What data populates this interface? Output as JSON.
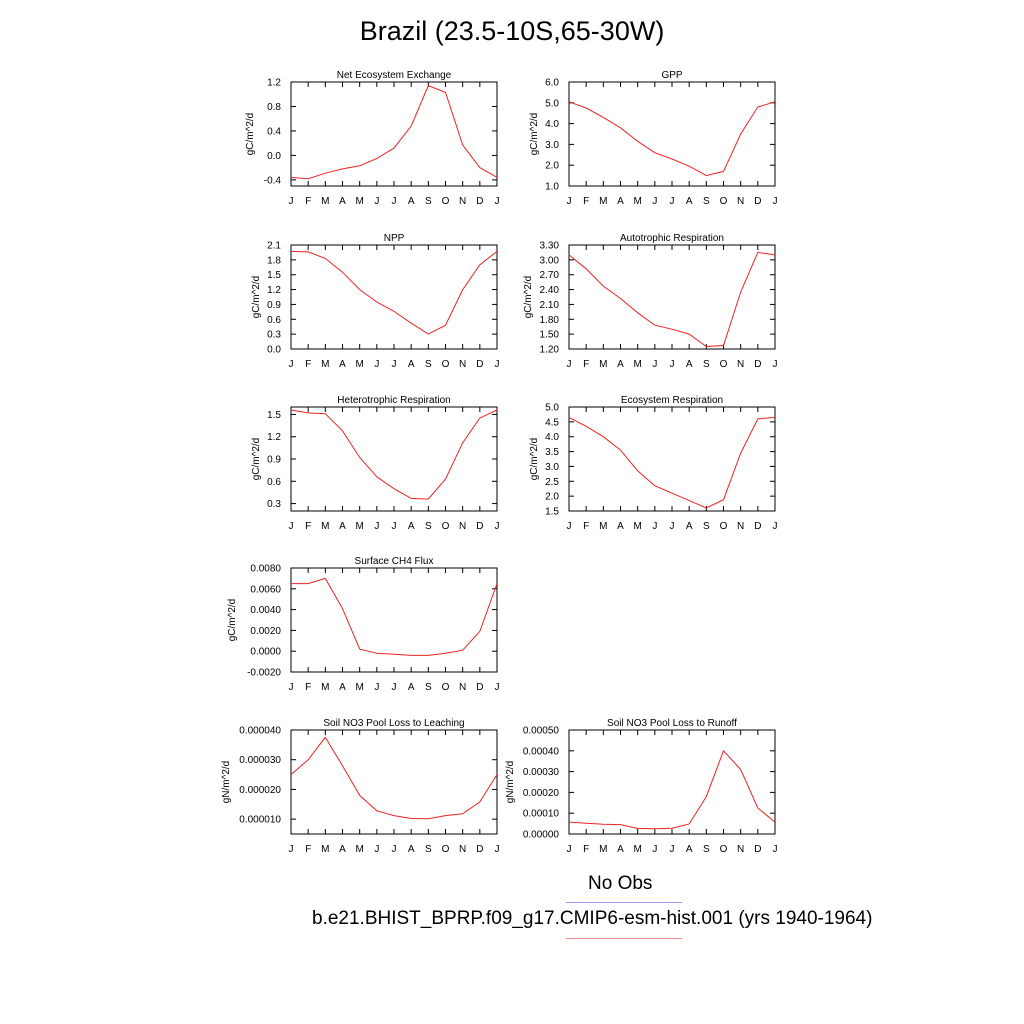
{
  "title": "Brazil (23.5-10S,65-30W)",
  "legend": {
    "obs_label": "No Obs",
    "model_label": "b.e21.BHIST_BPRP.f09_g17.CMIP6-esm-hist.001 (yrs 1940-1964)",
    "obs_color": "#9999ee",
    "model_color": "#ee2222"
  },
  "chart_data": [
    {
      "type": "line",
      "title": "Net Ecosystem Exchange",
      "ylabel": "gC/m^2/d",
      "x": [
        "J",
        "F",
        "M",
        "A",
        "M",
        "J",
        "J",
        "A",
        "S",
        "O",
        "N",
        "D",
        "J"
      ],
      "ylim": [
        -0.5,
        1.2
      ],
      "yticks": [
        "1.2",
        "0.8",
        "0.4",
        "0.0",
        "-0.4"
      ],
      "ytick_values": [
        1.2,
        0.8,
        0.4,
        0.0,
        -0.4
      ],
      "series": [
        {
          "values": [
            -0.36,
            -0.38,
            -0.29,
            -0.22,
            -0.17,
            -0.05,
            0.12,
            0.48,
            1.14,
            1.03,
            0.17,
            -0.2,
            -0.36
          ]
        }
      ]
    },
    {
      "type": "line",
      "title": "GPP",
      "ylabel": "gC/m^2/d",
      "x": [
        "J",
        "F",
        "M",
        "A",
        "M",
        "J",
        "J",
        "A",
        "S",
        "O",
        "N",
        "D",
        "J"
      ],
      "ylim": [
        1.0,
        6.0
      ],
      "yticks": [
        "6.0",
        "5.0",
        "4.0",
        "3.0",
        "2.0",
        "1.0"
      ],
      "ytick_values": [
        6,
        5,
        4,
        3,
        2,
        1
      ],
      "series": [
        {
          "values": [
            5.05,
            4.75,
            4.3,
            3.8,
            3.15,
            2.6,
            2.3,
            1.95,
            1.5,
            1.7,
            3.5,
            4.8,
            5.05
          ]
        }
      ]
    },
    {
      "type": "line",
      "title": "NPP",
      "ylabel": "gC/m^2/d",
      "x": [
        "J",
        "F",
        "M",
        "A",
        "M",
        "J",
        "J",
        "A",
        "S",
        "O",
        "N",
        "D",
        "J"
      ],
      "ylim": [
        0.0,
        2.1
      ],
      "yticks": [
        "2.1",
        "1.8",
        "1.5",
        "1.2",
        "0.9",
        "0.6",
        "0.3",
        "0.0"
      ],
      "ytick_values": [
        2.1,
        1.8,
        1.5,
        1.2,
        0.9,
        0.6,
        0.3,
        0.0
      ],
      "series": [
        {
          "values": [
            1.97,
            1.96,
            1.83,
            1.55,
            1.2,
            0.95,
            0.76,
            0.52,
            0.3,
            0.48,
            1.2,
            1.7,
            1.97
          ]
        }
      ]
    },
    {
      "type": "line",
      "title": "Autotrophic Respiration",
      "ylabel": "gC/m^2/d",
      "x": [
        "J",
        "F",
        "M",
        "A",
        "M",
        "J",
        "J",
        "A",
        "S",
        "O",
        "N",
        "D",
        "J"
      ],
      "ylim": [
        1.2,
        3.3
      ],
      "yticks": [
        "3.30",
        "3.00",
        "2.70",
        "2.40",
        "2.10",
        "1.80",
        "1.50",
        "1.20"
      ],
      "ytick_values": [
        3.3,
        3.0,
        2.7,
        2.4,
        2.1,
        1.8,
        1.5,
        1.2
      ],
      "series": [
        {
          "values": [
            3.1,
            2.82,
            2.47,
            2.22,
            1.93,
            1.68,
            1.6,
            1.5,
            1.25,
            1.27,
            2.35,
            3.15,
            3.1
          ]
        }
      ]
    },
    {
      "type": "line",
      "title": "Heterotrophic Respiration",
      "ylabel": "gC/m^2/d",
      "x": [
        "J",
        "F",
        "M",
        "A",
        "M",
        "J",
        "J",
        "A",
        "S",
        "O",
        "N",
        "D",
        "J"
      ],
      "ylim": [
        0.2,
        1.6
      ],
      "yticks": [
        "1.5",
        "1.2",
        "0.9",
        "0.6",
        "0.3"
      ],
      "ytick_values": [
        1.5,
        1.2,
        0.9,
        0.6,
        0.3
      ],
      "series": [
        {
          "values": [
            1.56,
            1.52,
            1.51,
            1.28,
            0.92,
            0.66,
            0.5,
            0.37,
            0.36,
            0.63,
            1.12,
            1.45,
            1.56
          ]
        }
      ]
    },
    {
      "type": "line",
      "title": "Ecosystem Respiration",
      "ylabel": "gC/m^2/d",
      "x": [
        "J",
        "F",
        "M",
        "A",
        "M",
        "J",
        "J",
        "A",
        "S",
        "O",
        "N",
        "D",
        "J"
      ],
      "ylim": [
        1.5,
        5.0
      ],
      "yticks": [
        "5.0",
        "4.5",
        "4.0",
        "3.5",
        "3.0",
        "2.5",
        "2.0",
        "1.5"
      ],
      "ytick_values": [
        5.0,
        4.5,
        4.0,
        3.5,
        3.0,
        2.5,
        2.0,
        1.5
      ],
      "series": [
        {
          "values": [
            4.65,
            4.35,
            4.0,
            3.55,
            2.85,
            2.35,
            2.1,
            1.85,
            1.6,
            1.88,
            3.45,
            4.6,
            4.65
          ]
        }
      ]
    },
    {
      "type": "line",
      "title": "Surface CH4 Flux",
      "ylabel": "gC/m^2/d",
      "x": [
        "J",
        "F",
        "M",
        "A",
        "M",
        "J",
        "J",
        "A",
        "S",
        "O",
        "N",
        "D",
        "J"
      ],
      "ylim": [
        -0.002,
        0.008
      ],
      "yticks": [
        "0.0080",
        "0.0060",
        "0.0040",
        "0.0020",
        "0.0000",
        "-0.0020"
      ],
      "ytick_values": [
        0.008,
        0.006,
        0.004,
        0.002,
        0.0,
        -0.002
      ],
      "series": [
        {
          "values": [
            0.0065,
            0.0065,
            0.007,
            0.0041,
            0.0002,
            -0.0002,
            -0.0003,
            -0.0004,
            -0.0004,
            -0.0002,
            0.0001,
            0.0019,
            0.0065
          ]
        }
      ]
    },
    {
      "type": "line",
      "title": "Soil NO3 Pool Loss to Leaching",
      "ylabel": "gN/m^2/d",
      "x": [
        "J",
        "F",
        "M",
        "A",
        "M",
        "J",
        "J",
        "A",
        "S",
        "O",
        "N",
        "D",
        "J"
      ],
      "ylim": [
        5e-06,
        4e-05
      ],
      "yticks": [
        "0.000040",
        "0.000030",
        "0.000020",
        "0.000010"
      ],
      "ytick_values": [
        4e-05,
        3e-05,
        2e-05,
        1e-05
      ],
      "series": [
        {
          "values": [
            2.5e-05,
            3e-05,
            3.75e-05,
            2.8e-05,
            1.8e-05,
            1.28e-05,
            1.12e-05,
            1.02e-05,
            1.01e-05,
            1.12e-05,
            1.18e-05,
            1.58e-05,
            2.5e-05
          ]
        }
      ]
    },
    {
      "type": "line",
      "title": "Soil NO3 Pool Loss to Runoff",
      "ylabel": "gN/m^2/d",
      "x": [
        "J",
        "F",
        "M",
        "A",
        "M",
        "J",
        "J",
        "A",
        "S",
        "O",
        "N",
        "D",
        "J"
      ],
      "ylim": [
        0.0,
        0.0005
      ],
      "yticks": [
        "0.00050",
        "0.00040",
        "0.00030",
        "0.00020",
        "0.00010",
        "0.00000"
      ],
      "ytick_values": [
        0.0005,
        0.0004,
        0.0003,
        0.0002,
        0.0001,
        0.0
      ],
      "series": [
        {
          "values": [
            5.7e-05,
            5.2e-05,
            4.7e-05,
            4.5e-05,
            2.7e-05,
            2.5e-05,
            2.8e-05,
            4.8e-05,
            0.00018,
            0.0004,
            0.00031,
            0.000125,
            5.7e-05
          ]
        }
      ]
    }
  ]
}
